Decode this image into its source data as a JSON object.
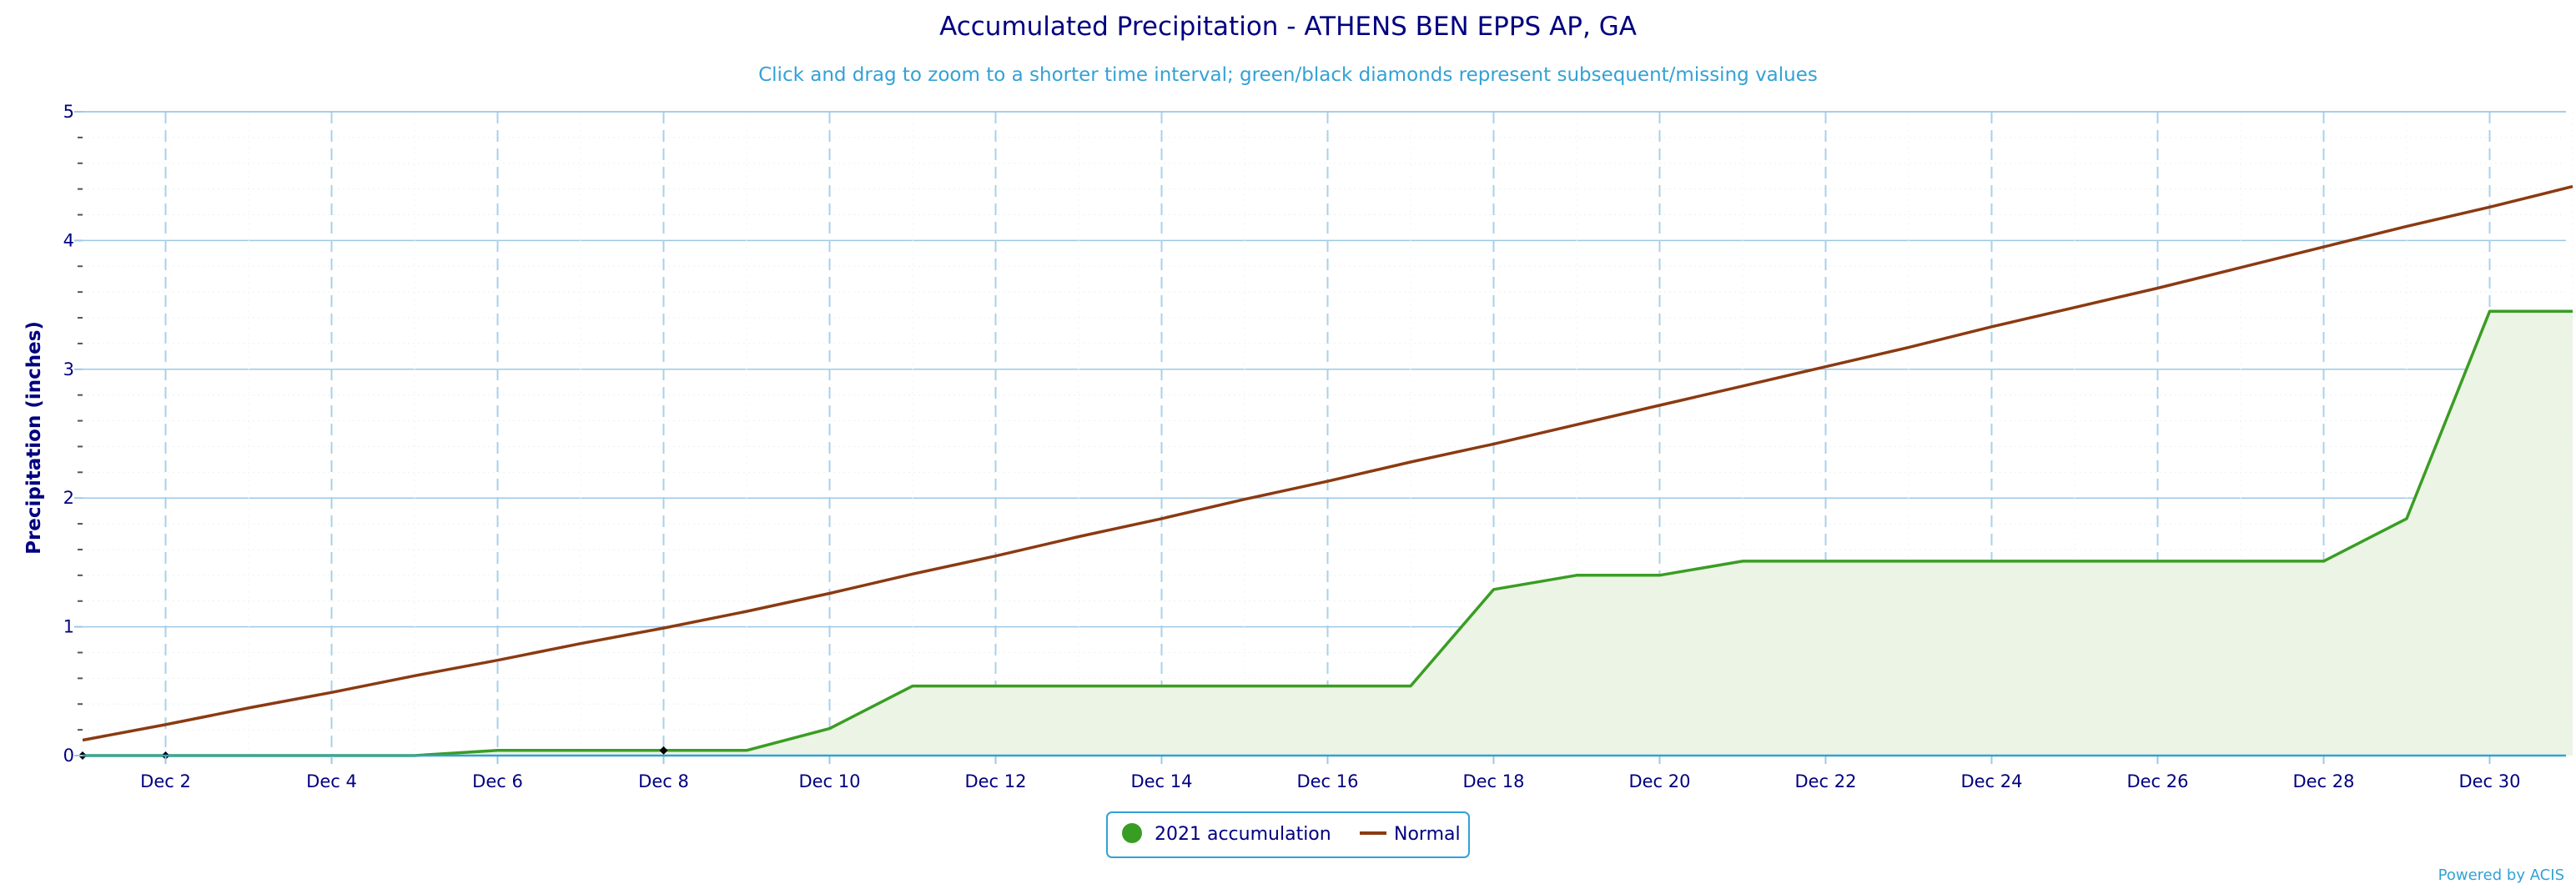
{
  "chart_data": {
    "type": "line",
    "title": "Accumulated Precipitation - ATHENS BEN EPPS AP, GA",
    "subtitle": "Click and drag to zoom to a shorter time interval; green/black diamonds represent subsequent/missing values",
    "ylabel": "Precipitation (inches)",
    "xlabel": "",
    "ylim": [
      0,
      5
    ],
    "yticks": [
      "0",
      "1",
      "2",
      "3",
      "4",
      "5"
    ],
    "xticks": [
      "Dec 2",
      "Dec 4",
      "Dec 6",
      "Dec 8",
      "Dec 10",
      "Dec 12",
      "Dec 14",
      "Dec 16",
      "Dec 18",
      "Dec 20",
      "Dec 22",
      "Dec 24",
      "Dec 26",
      "Dec 28",
      "Dec 30"
    ],
    "x": [
      "Dec 1",
      "Dec 2",
      "Dec 3",
      "Dec 4",
      "Dec 5",
      "Dec 6",
      "Dec 7",
      "Dec 8",
      "Dec 9",
      "Dec 10",
      "Dec 11",
      "Dec 12",
      "Dec 13",
      "Dec 14",
      "Dec 15",
      "Dec 16",
      "Dec 17",
      "Dec 18",
      "Dec 19",
      "Dec 20",
      "Dec 21",
      "Dec 22",
      "Dec 23",
      "Dec 24",
      "Dec 25",
      "Dec 26",
      "Dec 27",
      "Dec 28",
      "Dec 29",
      "Dec 30",
      "Dec 31"
    ],
    "series": [
      {
        "name": "2021 accumulation",
        "color": "#3a9d23",
        "fill": "#ebf4e5",
        "values": [
          0,
          0,
          0,
          0,
          0,
          0.04,
          0.04,
          0.04,
          0.04,
          0.21,
          0.54,
          0.54,
          0.54,
          0.54,
          0.54,
          0.54,
          0.54,
          1.29,
          1.4,
          1.4,
          1.51,
          1.51,
          1.51,
          1.51,
          1.51,
          1.51,
          1.51,
          1.51,
          1.84,
          3.45,
          3.45
        ]
      },
      {
        "name": "Normal",
        "color": "#8b3a12",
        "values": [
          0.12,
          0.24,
          0.37,
          0.49,
          0.62,
          0.74,
          0.87,
          0.99,
          1.12,
          1.26,
          1.41,
          1.55,
          1.7,
          1.84,
          1.99,
          2.13,
          2.28,
          2.42,
          2.57,
          2.72,
          2.87,
          3.02,
          3.17,
          3.33,
          3.48,
          3.63,
          3.79,
          3.95,
          4.11,
          4.26,
          4.42
        ]
      }
    ],
    "missing_markers": {
      "color": "#000000",
      "points": [
        {
          "x": "Dec 1",
          "y": 0
        },
        {
          "x": "Dec 2",
          "y": 0
        },
        {
          "x": "Dec 8",
          "y": 0.04
        }
      ]
    },
    "grid": true,
    "legend_position": "bottom-center"
  },
  "legend": {
    "items": [
      {
        "label": "2021 accumulation",
        "symbol": "circle",
        "color": "#3a9d23"
      },
      {
        "label": "Normal",
        "symbol": "line",
        "color": "#8b3a12"
      }
    ]
  },
  "credit": "Powered by ACIS"
}
